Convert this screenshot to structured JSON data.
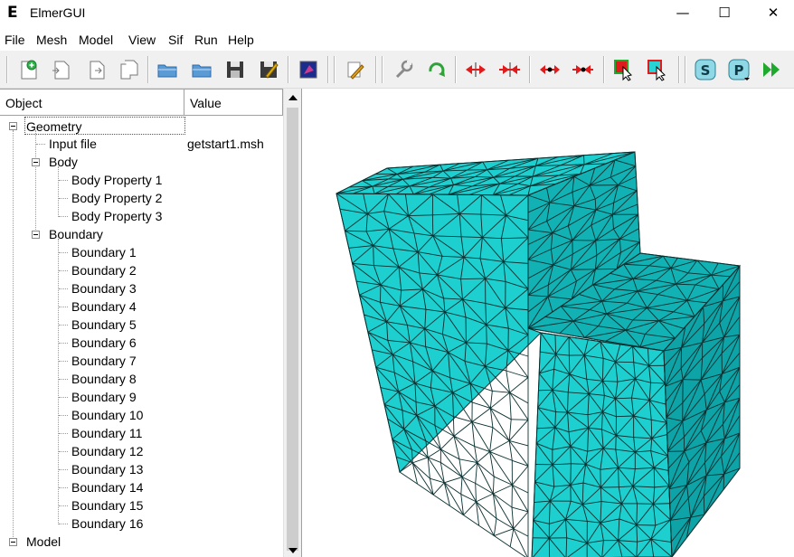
{
  "window": {
    "title": "ElmerGUI",
    "logo_letter": "E",
    "minimize_glyph": "—",
    "maximize_glyph": "☐",
    "close_glyph": "✕"
  },
  "menu": [
    "File",
    "Mesh",
    "Model",
    "View",
    "Sif",
    "Run",
    "Help"
  ],
  "toolbar": {
    "icons": [
      "new-file-icon",
      "open-file-icon",
      "load-file-icon",
      "copy-file-icon",
      "open-folder-icon",
      "open-folder-icon",
      "save-icon",
      "save-as-icon",
      "render-icon",
      "edit-icon",
      "settings-wrench-icon",
      "refresh-icon",
      "divide-surface-icon",
      "unify-surface-icon",
      "divide-edge-icon",
      "unify-edge-icon",
      "select-surface-icon",
      "select-edge-icon",
      "solver-icon",
      "postprocessor-icon",
      "run-icon"
    ],
    "solver_label": "S",
    "post_label": "P"
  },
  "tree": {
    "headers": {
      "object": "Object",
      "value": "Value"
    },
    "geometry": {
      "label": "Geometry",
      "input_file_label": "Input file",
      "input_file_value": "getstart1.msh",
      "body": {
        "label": "Body",
        "items": [
          "Body Property 1",
          "Body Property 2",
          "Body Property 3"
        ]
      },
      "boundary": {
        "label": "Boundary",
        "items": [
          "Boundary 1",
          "Boundary 2",
          "Boundary 3",
          "Boundary 4",
          "Boundary 5",
          "Boundary 6",
          "Boundary 7",
          "Boundary 8",
          "Boundary 9",
          "Boundary 10",
          "Boundary 11",
          "Boundary 12",
          "Boundary 13",
          "Boundary 14",
          "Boundary 15",
          "Boundary 16"
        ]
      }
    },
    "model": {
      "label": "Model"
    }
  },
  "colors": {
    "mesh_fill": "#1ecfcf",
    "mesh_shade": "#12b2b4",
    "mesh_dark": "#0ea3a6",
    "mesh_edge": "#0a2f30"
  }
}
